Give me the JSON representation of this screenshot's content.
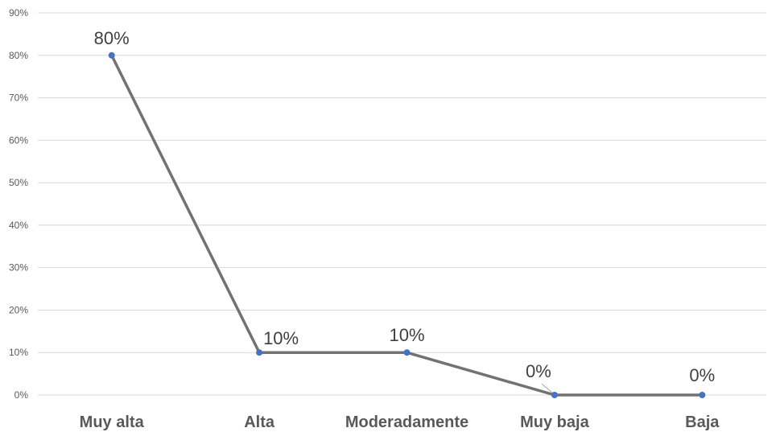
{
  "chart_data": {
    "type": "line",
    "title": "",
    "xlabel": "",
    "ylabel": "",
    "categories": [
      "Muy alta",
      "Alta",
      "Moderadamente",
      "Muy baja",
      "Baja"
    ],
    "series": [
      {
        "values": [
          80,
          10,
          10,
          0,
          0
        ],
        "data_labels": [
          "80%",
          "10%",
          "10%",
          "0%",
          "0%"
        ]
      }
    ],
    "ylim": [
      0,
      90
    ],
    "yticks": [
      0,
      10,
      20,
      30,
      40,
      50,
      60,
      70,
      80,
      90
    ],
    "ytick_labels": [
      "0%",
      "10%",
      "20%",
      "30%",
      "40%",
      "50%",
      "60%",
      "70%",
      "80%",
      "90%"
    ],
    "grid": true,
    "legend": "none",
    "colors": {
      "line": "#767171",
      "marker": "#4472c4"
    }
  }
}
